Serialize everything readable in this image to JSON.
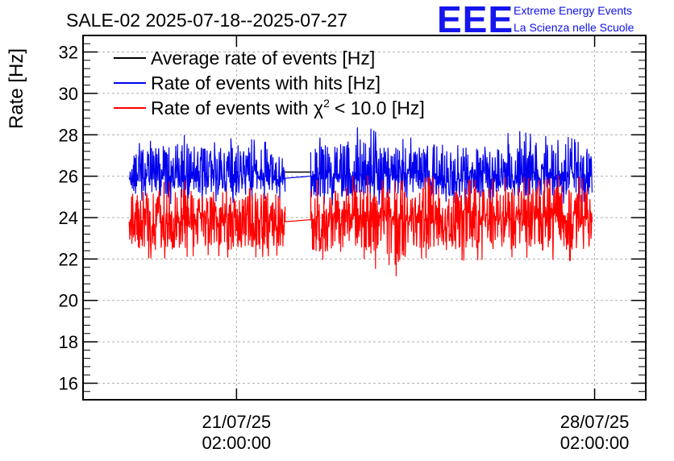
{
  "header": {
    "title": "SALE-02 2025-07-18--2025-07-27",
    "brand_logo": "EEE",
    "brand_line1": "Extreme Energy Events",
    "brand_line2": "La Scienza nelle Scuole"
  },
  "colors": {
    "average": "#000000",
    "hits": "#0000ee",
    "chi2": "#ff0000",
    "brand": "#1515ee",
    "grid": "#b0b0b0"
  },
  "chart_data": {
    "type": "line",
    "title": "SALE-02 2025-07-18--2025-07-27",
    "ylabel": "Rate [Hz]",
    "xlabel": "",
    "ylim": [
      15.2,
      32.8
    ],
    "xlim_days": [
      0,
      11
    ],
    "y_ticks": [
      "16",
      "18",
      "20",
      "22",
      "24",
      "26",
      "28",
      "30",
      "32"
    ],
    "x_ticks": [
      {
        "day": 3.0,
        "line1": "21/07/25",
        "line2": "02:00:00"
      },
      {
        "day": 10.0,
        "line1": "28/07/25",
        "line2": "02:00:00"
      }
    ],
    "grid": true,
    "legend_position": "top-left",
    "data_gap_days": [
      3.95,
      4.45
    ],
    "series": [
      {
        "name": "Average rate of events [Hz]",
        "key": "average",
        "legend_main": "Average rate of events [Hz]",
        "x_days": [
          3.95,
          4.45
        ],
        "values": [
          26.2,
          26.2
        ]
      },
      {
        "name": "Rate of events with hits [Hz]",
        "key": "hits",
        "legend_main": "Rate of events with hits [Hz]",
        "x_days": [
          0.9,
          1.5,
          2.0,
          2.5,
          3.0,
          3.5,
          3.95,
          4.45,
          5.0,
          5.5,
          6.0,
          6.5,
          7.0,
          7.5,
          8.0,
          8.5,
          9.0,
          9.5,
          9.95
        ],
        "values": [
          26.0,
          26.1,
          26.0,
          26.1,
          26.0,
          26.1,
          25.9,
          26.0,
          26.1,
          26.0,
          26.1,
          26.2,
          26.0,
          26.1,
          26.0,
          26.1,
          26.2,
          26.0,
          26.1
        ],
        "fluct_min": [
          24.9,
          24.7,
          24.6,
          24.8,
          24.7,
          24.9,
          24.8,
          24.7,
          24.6,
          24.8,
          24.5,
          24.7,
          24.8,
          24.6,
          24.7,
          24.8,
          24.6,
          24.7,
          24.8
        ],
        "fluct_max": [
          27.5,
          27.8,
          28.0,
          27.6,
          27.9,
          27.7,
          27.4,
          27.8,
          28.0,
          28.5,
          27.7,
          27.9,
          28.1,
          27.8,
          27.9,
          28.2,
          27.9,
          28.4,
          27.7
        ]
      },
      {
        "name": "Rate of events with χ2 < 10.0 [Hz]",
        "key": "chi2",
        "legend_main": "Rate of events with χ",
        "legend_sup": "2",
        "legend_tail": "< 10.0 [Hz]",
        "x_days": [
          0.9,
          1.5,
          2.0,
          2.5,
          3.0,
          3.5,
          3.95,
          4.45,
          5.0,
          5.5,
          6.0,
          6.5,
          7.0,
          7.5,
          8.0,
          8.5,
          9.0,
          9.5,
          9.95
        ],
        "values": [
          23.9,
          24.0,
          23.9,
          24.0,
          23.9,
          24.0,
          23.8,
          23.9,
          24.0,
          23.9,
          24.0,
          24.1,
          23.9,
          24.0,
          23.9,
          24.0,
          24.1,
          23.9,
          24.0
        ],
        "fluct_min": [
          22.1,
          22.0,
          22.1,
          22.2,
          22.0,
          22.1,
          22.2,
          22.0,
          21.9,
          22.0,
          20.9,
          22.0,
          22.1,
          21.9,
          22.0,
          22.1,
          22.0,
          21.9,
          22.1
        ],
        "fluct_max": [
          25.5,
          25.7,
          25.8,
          25.6,
          26.0,
          25.7,
          25.4,
          25.8,
          25.9,
          26.1,
          25.7,
          25.9,
          26.0,
          25.8,
          25.9,
          26.0,
          25.8,
          26.2,
          25.7
        ]
      }
    ]
  }
}
